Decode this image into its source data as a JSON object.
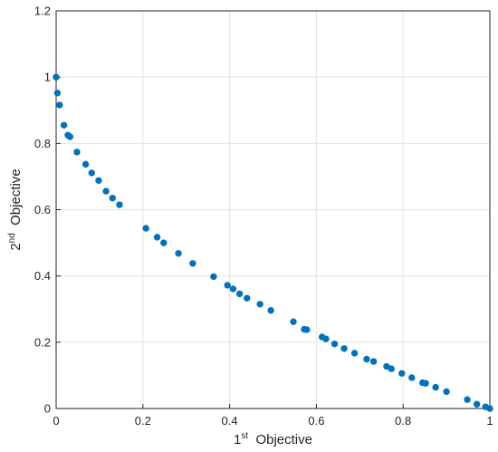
{
  "chart_data": {
    "type": "scatter",
    "title": "",
    "xlabel": {
      "base": "1",
      "sup": "st",
      "rest": "  Objective"
    },
    "ylabel": {
      "base": "2",
      "sup": "nd",
      "rest": "  Objective"
    },
    "xlim": [
      0,
      1
    ],
    "ylim": [
      0,
      1.2
    ],
    "xticks": [
      0,
      0.2,
      0.4,
      0.6,
      0.8,
      1
    ],
    "xtick_labels": [
      "0",
      "0.2",
      "0.4",
      "0.6",
      "0.8",
      "1"
    ],
    "yticks": [
      0,
      0.2,
      0.4,
      0.6,
      0.8,
      1,
      1.2
    ],
    "ytick_labels": [
      "0",
      "0.2",
      "0.4",
      "0.6",
      "0.8",
      "1",
      "1.2"
    ],
    "grid": true,
    "marker_color": "#0072bd",
    "series": [
      {
        "x": [
          0.0,
          0.003,
          0.008,
          0.018,
          0.027,
          0.032,
          0.048,
          0.068,
          0.082,
          0.098,
          0.115,
          0.13,
          0.146,
          0.207,
          0.233,
          0.248,
          0.282,
          0.315,
          0.363,
          0.395,
          0.408,
          0.423,
          0.44,
          0.47,
          0.495,
          0.547,
          0.572,
          0.578,
          0.613,
          0.622,
          0.642,
          0.664,
          0.688,
          0.716,
          0.732,
          0.762,
          0.773,
          0.797,
          0.82,
          0.845,
          0.852,
          0.875,
          0.9,
          0.948,
          0.97,
          0.99,
          1.0
        ],
        "y": [
          1.0,
          0.952,
          0.916,
          0.855,
          0.825,
          0.82,
          0.774,
          0.737,
          0.711,
          0.688,
          0.656,
          0.635,
          0.615,
          0.544,
          0.517,
          0.5,
          0.468,
          0.438,
          0.398,
          0.372,
          0.361,
          0.346,
          0.333,
          0.315,
          0.296,
          0.262,
          0.239,
          0.238,
          0.216,
          0.21,
          0.195,
          0.181,
          0.167,
          0.149,
          0.142,
          0.127,
          0.12,
          0.106,
          0.093,
          0.078,
          0.076,
          0.064,
          0.051,
          0.027,
          0.013,
          0.005,
          0.0
        ]
      }
    ]
  }
}
